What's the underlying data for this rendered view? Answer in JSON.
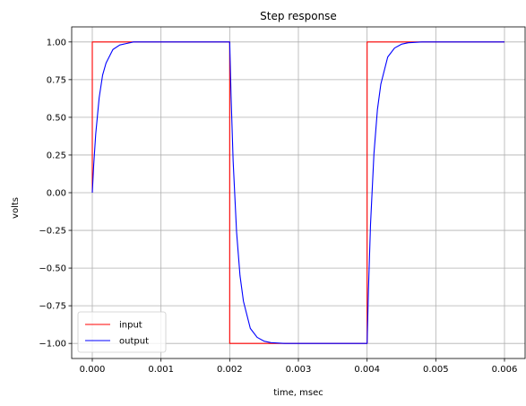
{
  "chart_data": {
    "type": "line",
    "title": "Step response",
    "xlabel": "time, msec",
    "ylabel": "volts",
    "xlim": [
      -0.0003,
      0.0063
    ],
    "ylim": [
      -1.1,
      1.1
    ],
    "xticks": [
      0.0,
      0.001,
      0.002,
      0.003,
      0.004,
      0.005,
      0.006
    ],
    "xtick_labels": [
      "0.000",
      "0.001",
      "0.002",
      "0.003",
      "0.004",
      "0.005",
      "0.006"
    ],
    "yticks": [
      -1.0,
      -0.75,
      -0.5,
      -0.25,
      0.0,
      0.25,
      0.5,
      0.75,
      1.0
    ],
    "ytick_labels": [
      "−1.00",
      "−0.75",
      "−0.50",
      "−0.25",
      "0.00",
      "0.25",
      "0.50",
      "0.75",
      "1.00"
    ],
    "grid": true,
    "legend_position": "lower-left",
    "series": [
      {
        "name": "input",
        "color": "#ff0000",
        "x": [
          0.0,
          0.0,
          0.002,
          0.002,
          0.004,
          0.004,
          0.006
        ],
        "y": [
          0.0,
          1.0,
          1.0,
          -1.0,
          -1.0,
          1.0,
          1.0
        ]
      },
      {
        "name": "output",
        "color": "#0000ff",
        "x": [
          0.0,
          2e-05,
          5e-05,
          0.0001,
          0.00015,
          0.0002,
          0.0003,
          0.0004,
          0.0005,
          0.0006,
          0.0008,
          0.001,
          0.0015,
          0.002,
          0.00202,
          0.00205,
          0.0021,
          0.00215,
          0.0022,
          0.0023,
          0.0024,
          0.0025,
          0.0026,
          0.0028,
          0.003,
          0.0035,
          0.004,
          0.00402,
          0.00405,
          0.0041,
          0.00415,
          0.0042,
          0.0043,
          0.0044,
          0.0045,
          0.0046,
          0.0048,
          0.005,
          0.0055,
          0.006
        ],
        "y": [
          0.0,
          0.18,
          0.39,
          0.63,
          0.78,
          0.86,
          0.95,
          0.98,
          0.99,
          1.0,
          1.0,
          1.0,
          1.0,
          1.0,
          0.64,
          0.21,
          -0.26,
          -0.55,
          -0.72,
          -0.9,
          -0.96,
          -0.985,
          -0.995,
          -1.0,
          -1.0,
          -1.0,
          -1.0,
          -0.64,
          -0.21,
          0.26,
          0.55,
          0.72,
          0.9,
          0.96,
          0.985,
          0.995,
          1.0,
          1.0,
          1.0,
          1.0
        ]
      }
    ]
  }
}
